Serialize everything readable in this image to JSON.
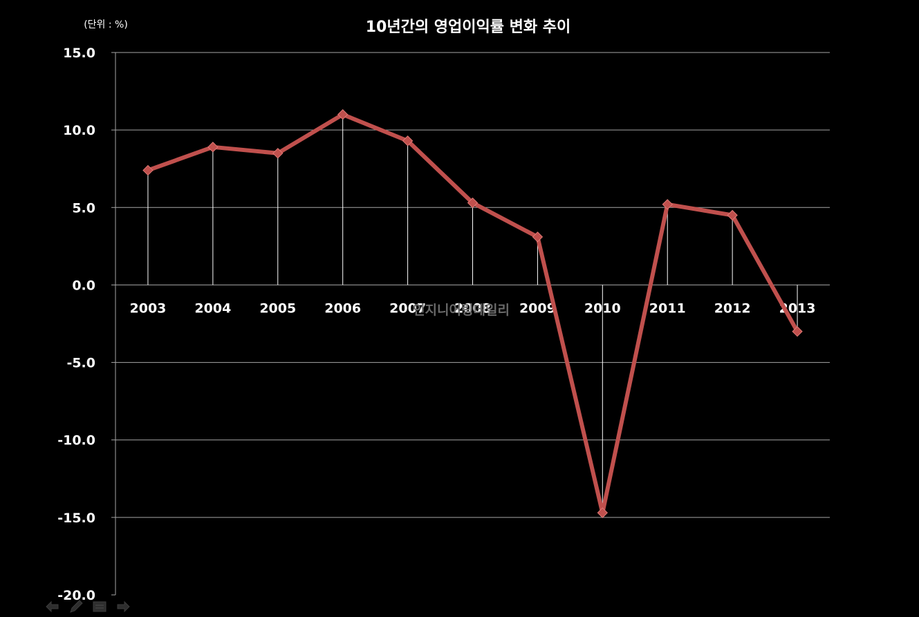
{
  "chart_data": {
    "type": "line",
    "title": "10년간의 영업이익률 변화 추이",
    "unit_label": "(단위 : %)",
    "watermark": "인지니어링데일리",
    "categories": [
      "2003",
      "2004",
      "2005",
      "2006",
      "2007",
      "2008",
      "2009",
      "2010",
      "2011",
      "2012",
      "2013"
    ],
    "series": [
      {
        "values": [
          7.4,
          8.9,
          8.5,
          11.0,
          9.3,
          5.3,
          3.1,
          -14.7,
          5.2,
          4.5,
          -3.0
        ],
        "color": "#c0504d"
      }
    ],
    "ylim": [
      -20.0,
      15.0
    ],
    "yticks": [
      "15.0",
      "10.0",
      "5.0",
      "0.0",
      "-5.0",
      "-10.0",
      "-15.0",
      "-20.0"
    ],
    "ytick_values": [
      15,
      10,
      5,
      0,
      -5,
      -10,
      -15,
      -20
    ],
    "grid": true,
    "xlabel": "",
    "ylabel": "",
    "background": "#000000",
    "text_color": "#ffffff",
    "grid_color": "#a6a6a6",
    "marker": "diamond"
  },
  "navigation": {
    "back_icon": "arrow-left-icon",
    "pen_icon": "pen-icon",
    "menu_icon": "slide-menu-icon",
    "forward_icon": "arrow-right-icon"
  }
}
